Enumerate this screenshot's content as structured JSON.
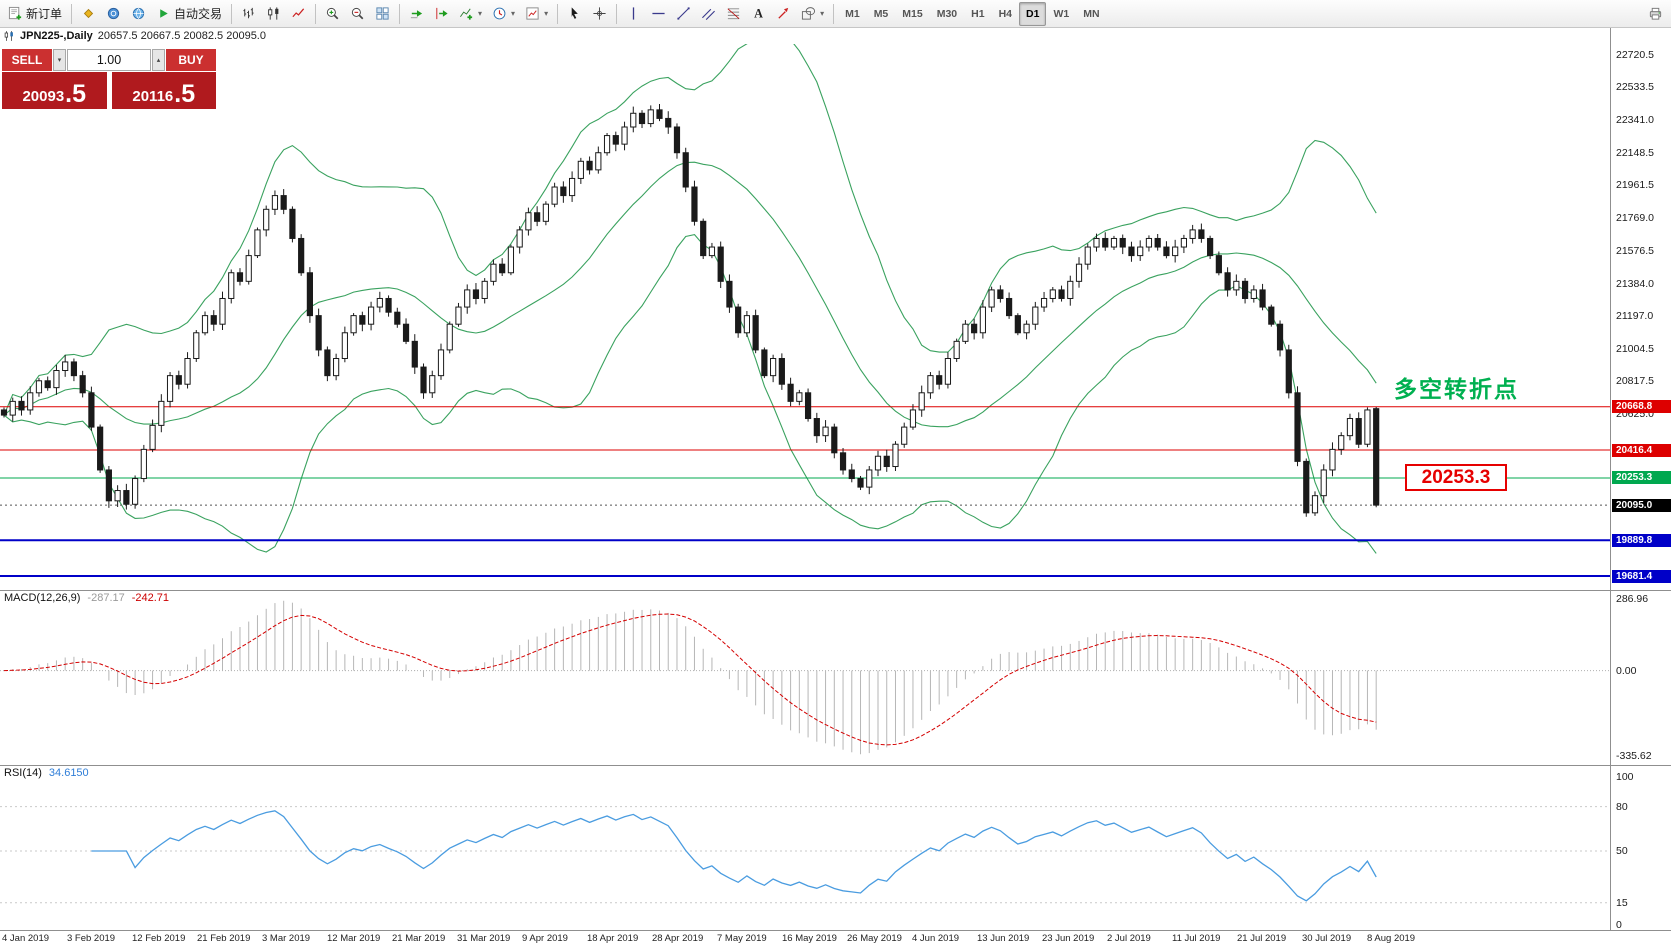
{
  "window": {
    "title_symbol": "JPN225-,Daily",
    "title_ohlc": "20657.5 20667.5 20082.5 20095.0"
  },
  "toolbar": {
    "items": [
      {
        "kind": "button",
        "name": "new-order-button",
        "glyph": "new-order",
        "label": "新订单"
      },
      {
        "kind": "sep"
      },
      {
        "kind": "icon",
        "name": "metaeditor-icon",
        "glyph": "diamond"
      },
      {
        "kind": "icon",
        "name": "market-icon",
        "glyph": "coin"
      },
      {
        "kind": "icon",
        "name": "community-icon",
        "glyph": "globe"
      },
      {
        "kind": "button",
        "name": "autotrading-button",
        "glyph": "play",
        "label": "自动交易"
      },
      {
        "kind": "sep"
      },
      {
        "kind": "icon",
        "name": "bar-chart-icon",
        "glyph": "bars"
      },
      {
        "kind": "icon",
        "name": "candlestick-chart-icon",
        "glyph": "candles"
      },
      {
        "kind": "icon",
        "name": "line-chart-icon",
        "glyph": "line"
      },
      {
        "kind": "sep"
      },
      {
        "kind": "icon",
        "name": "zoom-in-icon",
        "glyph": "zoom-in"
      },
      {
        "kind": "icon",
        "name": "zoom-out-icon",
        "glyph": "zoom-out"
      },
      {
        "kind": "icon",
        "name": "tile-windows-icon",
        "glyph": "grid"
      },
      {
        "kind": "sep"
      },
      {
        "kind": "icon",
        "name": "auto-scroll-icon",
        "glyph": "auto-scroll"
      },
      {
        "kind": "icon",
        "name": "chart-shift-icon",
        "glyph": "chart-shift"
      },
      {
        "kind": "icon",
        "name": "indicators-icon",
        "glyph": "indicators",
        "caret": true
      },
      {
        "kind": "icon",
        "name": "periods-icon",
        "glyph": "periods",
        "caret": true
      },
      {
        "kind": "icon",
        "name": "templates-icon",
        "glyph": "templates",
        "caret": true
      },
      {
        "kind": "sep"
      },
      {
        "kind": "icon",
        "name": "cursor-icon",
        "glyph": "cursor"
      },
      {
        "kind": "icon",
        "name": "crosshair-icon",
        "glyph": "crosshair"
      },
      {
        "kind": "sep"
      },
      {
        "kind": "icon",
        "name": "vertical-line-icon",
        "glyph": "vline"
      },
      {
        "kind": "icon",
        "name": "horizontal-line-icon",
        "glyph": "hline"
      },
      {
        "kind": "icon",
        "name": "trendline-icon",
        "glyph": "trendline"
      },
      {
        "kind": "icon",
        "name": "channel-icon",
        "glyph": "channel"
      },
      {
        "kind": "icon",
        "name": "fibonacci-icon",
        "glyph": "fibo"
      },
      {
        "kind": "icon",
        "name": "text-tool-icon",
        "glyph": "text"
      },
      {
        "kind": "icon",
        "name": "arrow-tool-icon",
        "glyph": "arrows"
      },
      {
        "kind": "icon",
        "name": "shapes-icon",
        "glyph": "shapes",
        "caret": true
      },
      {
        "kind": "sep"
      },
      {
        "kind": "tf",
        "name": "timeframe-m1",
        "label": "M1"
      },
      {
        "kind": "tf",
        "name": "timeframe-m5",
        "label": "M5"
      },
      {
        "kind": "tf",
        "name": "timeframe-m15",
        "label": "M15"
      },
      {
        "kind": "tf",
        "name": "timeframe-m30",
        "label": "M30"
      },
      {
        "kind": "tf",
        "name": "timeframe-h1",
        "label": "H1"
      },
      {
        "kind": "tf",
        "name": "timeframe-h4",
        "label": "H4"
      },
      {
        "kind": "tf",
        "name": "timeframe-d1",
        "label": "D1",
        "active": true
      },
      {
        "kind": "tf",
        "name": "timeframe-w1",
        "label": "W1"
      },
      {
        "kind": "tf",
        "name": "timeframe-mn",
        "label": "MN"
      },
      {
        "kind": "spacer"
      },
      {
        "kind": "icon",
        "name": "print-icon",
        "glyph": "printer"
      }
    ]
  },
  "trade_panel": {
    "sell_label": "SELL",
    "buy_label": "BUY",
    "volume": "1.00",
    "sell_price": {
      "main": "20093",
      "pips": ".5"
    },
    "buy_price": {
      "main": "20116",
      "pips": ".5"
    }
  },
  "chart": {
    "price_ticks": [
      "22720.5",
      "22533.5",
      "22341.0",
      "22148.5",
      "21961.5",
      "21769.0",
      "21576.5",
      "21384.0",
      "21197.0",
      "21004.5",
      "20817.5",
      "20625.0"
    ],
    "levels": [
      {
        "value": 20668.8,
        "label": "20668.8",
        "color": "#dd0000",
        "width": 1
      },
      {
        "value": 20416.4,
        "label": "20416.4",
        "color": "#dd0000",
        "width": 1
      },
      {
        "value": 20253.3,
        "label": "20253.3",
        "color": "#00a84f",
        "width": 1
      },
      {
        "value": 19889.8,
        "label": "19889.8",
        "color": "#0000c8",
        "width": 2
      },
      {
        "value": 19681.4,
        "label": "19681.4",
        "color": "#0000c8",
        "width": 2
      }
    ],
    "current_price": {
      "value": 20095.0,
      "label": "20095.0",
      "badge_color": "#000000"
    },
    "annotation": {
      "text": "多空转折点",
      "color": "#00b050"
    },
    "callout": {
      "text": "20253.3",
      "color": "#e60000"
    }
  },
  "chart_data": {
    "type": "candlestick",
    "symbol": "JPN225-",
    "period": "Daily",
    "x_step": 8.74,
    "price_range": [
      19600,
      22784
    ],
    "bollinger": {
      "period": 20,
      "deviation": 2,
      "color": "#3aa25f"
    },
    "closes": [
      20620,
      20700,
      20650,
      20750,
      20820,
      20780,
      20880,
      20930,
      20850,
      20750,
      20550,
      20300,
      20120,
      20180,
      20100,
      20250,
      20420,
      20560,
      20700,
      20850,
      20800,
      20950,
      21100,
      21200,
      21150,
      21300,
      21450,
      21400,
      21550,
      21700,
      21820,
      21900,
      21820,
      21650,
      21450,
      21200,
      21000,
      20850,
      20950,
      21100,
      21200,
      21150,
      21250,
      21300,
      21220,
      21150,
      21050,
      20900,
      20750,
      20850,
      21000,
      21150,
      21250,
      21350,
      21300,
      21400,
      21500,
      21450,
      21600,
      21700,
      21800,
      21750,
      21850,
      21950,
      21900,
      22000,
      22100,
      22050,
      22150,
      22250,
      22200,
      22300,
      22380,
      22320,
      22400,
      22350,
      22300,
      22150,
      21950,
      21750,
      21550,
      21600,
      21400,
      21250,
      21100,
      21200,
      21000,
      20850,
      20950,
      20800,
      20700,
      20750,
      20600,
      20500,
      20550,
      20400,
      20300,
      20250,
      20200,
      20300,
      20380,
      20320,
      20450,
      20550,
      20650,
      20750,
      20850,
      20800,
      20950,
      21050,
      21150,
      21100,
      21250,
      21350,
      21300,
      21200,
      21100,
      21150,
      21250,
      21300,
      21350,
      21300,
      21400,
      21500,
      21600,
      21650,
      21600,
      21650,
      21600,
      21550,
      21600,
      21650,
      21600,
      21550,
      21600,
      21650,
      21700,
      21650,
      21550,
      21450,
      21350,
      21400,
      21300,
      21350,
      21250,
      21150,
      21000,
      20750,
      20350,
      20050,
      20150,
      20300,
      20420,
      20500,
      20600,
      20450,
      20650,
      20095
    ],
    "last_ohlc": [
      20657.5,
      20667.5,
      20082.5,
      20095.0
    ]
  },
  "macd": {
    "title": "MACD(12,26,9)",
    "main_value": "-287.17",
    "signal_value": "-242.71",
    "axis_top": "286.96",
    "axis_zero": "0.00",
    "axis_bottom": "-335.62"
  },
  "rsi": {
    "title": "RSI(14)",
    "value": "34.6150",
    "ticks": [
      {
        "v": 100,
        "label": "100"
      },
      {
        "v": 80,
        "label": "80"
      },
      {
        "v": 50,
        "label": "50"
      },
      {
        "v": 15,
        "label": "15"
      },
      {
        "v": 0,
        "label": "0"
      }
    ],
    "levels": [
      80,
      50,
      15
    ]
  },
  "dates": [
    "4 Jan 2019",
    "3 Feb 2019",
    "12 Feb 2019",
    "21 Feb 2019",
    "3 Mar 2019",
    "12 Mar 2019",
    "21 Mar 2019",
    "31 Mar 2019",
    "9 Apr 2019",
    "18 Apr 2019",
    "28 Apr 2019",
    "7 May 2019",
    "16 May 2019",
    "26 May 2019",
    "4 Jun 2019",
    "13 Jun 2019",
    "23 Jun 2019",
    "2 Jul 2019",
    "11 Jul 2019",
    "21 Jul 2019",
    "30 Jul 2019",
    "8 Aug 2019"
  ]
}
